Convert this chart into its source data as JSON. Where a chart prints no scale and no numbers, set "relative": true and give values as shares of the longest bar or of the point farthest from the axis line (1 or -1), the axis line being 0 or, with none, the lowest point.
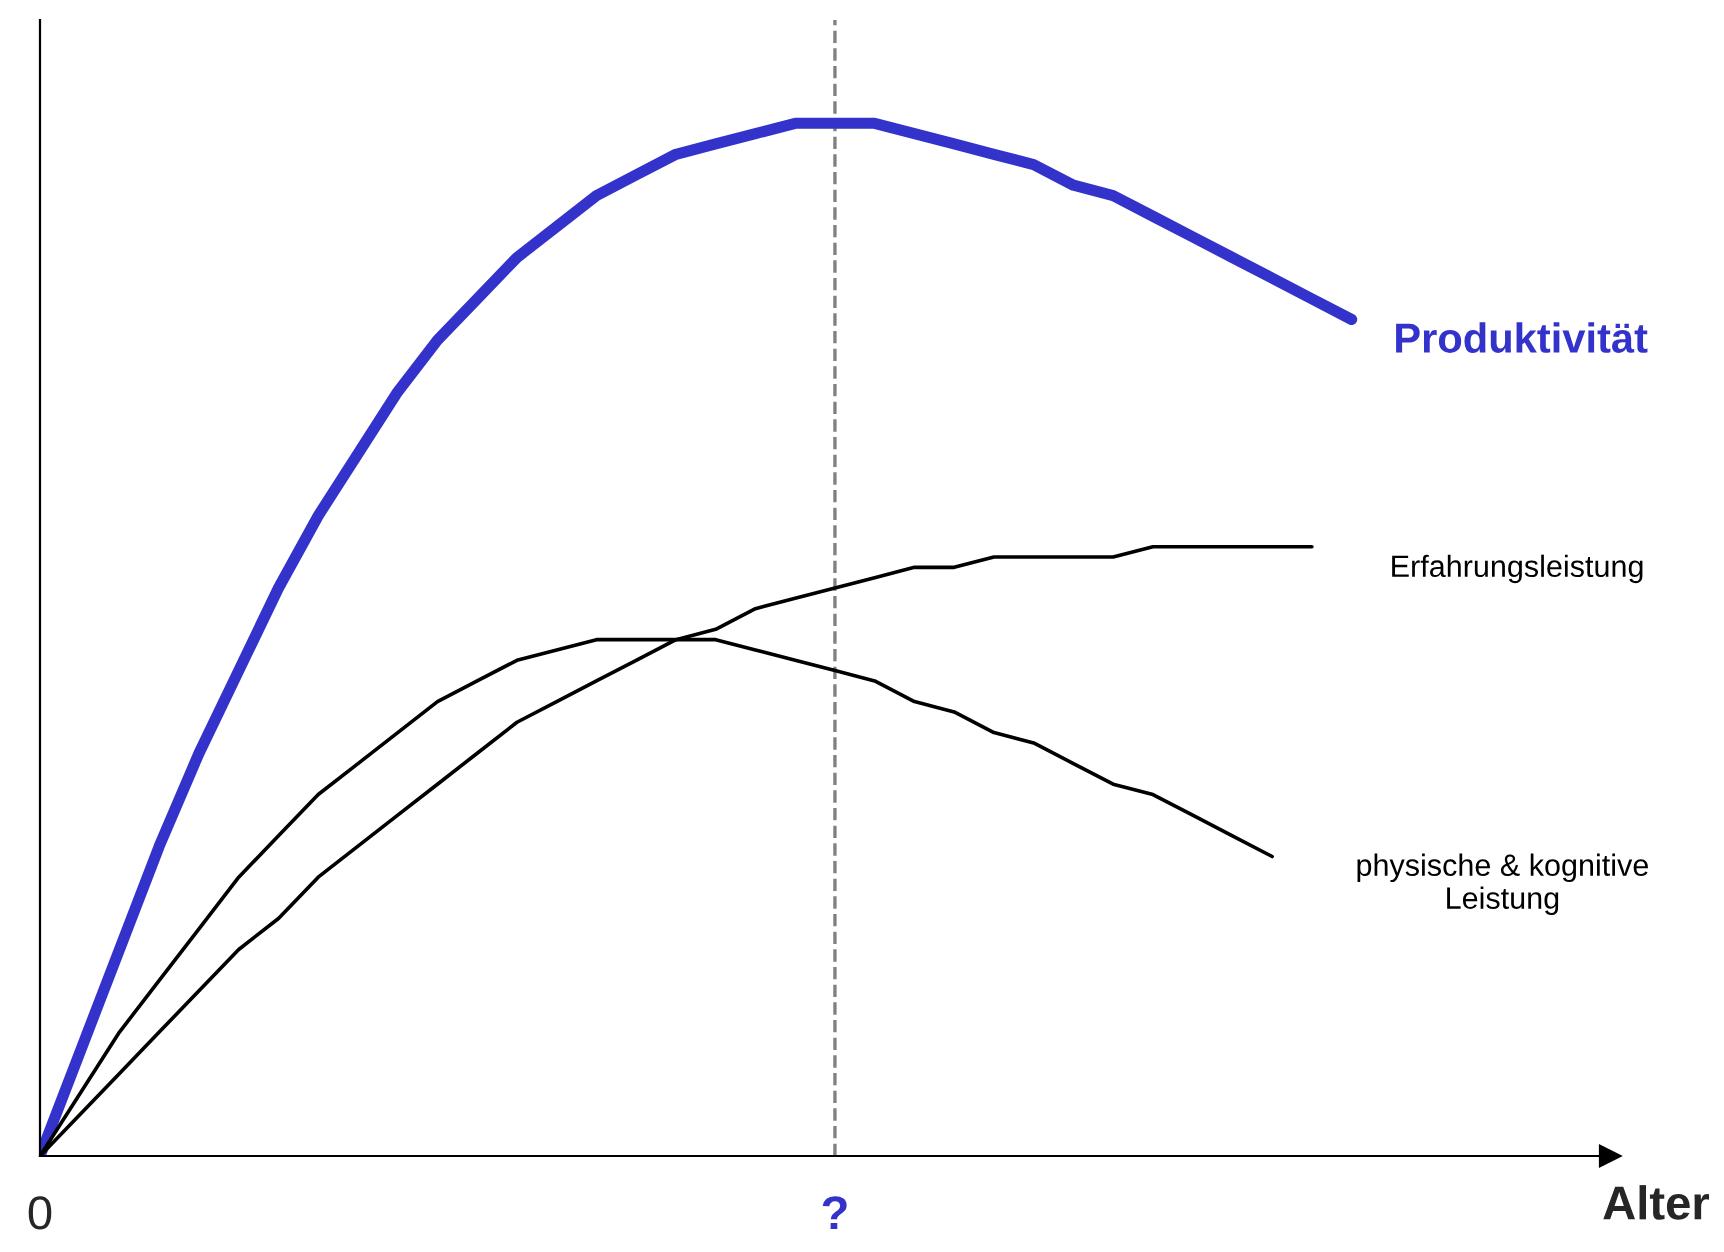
{
  "chart_data": {
    "type": "line",
    "relative": true,
    "xlabel": "Alter",
    "categories": [
      "0",
      null,
      null,
      null,
      null,
      null,
      null,
      null,
      null,
      null,
      null,
      null,
      null,
      null,
      null,
      null,
      null,
      null,
      null,
      null,
      "?",
      null,
      null,
      null,
      null,
      null,
      null,
      null,
      null,
      null,
      null,
      null,
      null,
      null,
      null,
      null,
      null,
      null,
      null,
      null
    ],
    "series": [
      {
        "name": "Produktivität",
        "color": "#3333cc",
        "values": [
          0,
          0.1,
          0.2,
          0.3,
          0.39,
          0.47,
          0.55,
          0.62,
          0.68,
          0.74,
          0.79,
          0.83,
          0.87,
          0.9,
          0.93,
          0.95,
          0.97,
          0.98,
          0.99,
          1.0,
          1.0,
          1.0,
          0.99,
          0.98,
          0.97,
          0.96,
          0.94,
          0.93,
          0.91,
          0.89,
          0.87,
          0.85,
          0.83,
          0.81,
          null,
          null,
          null,
          null,
          null,
          null
        ]
      },
      {
        "name": "Erfahrungsleistung",
        "color": "#000000",
        "values": [
          0,
          0.04,
          0.08,
          0.12,
          0.16,
          0.2,
          0.23,
          0.27,
          0.3,
          0.33,
          0.36,
          0.39,
          0.42,
          0.44,
          0.46,
          0.48,
          0.5,
          0.51,
          0.53,
          0.54,
          0.55,
          0.56,
          0.57,
          0.57,
          0.58,
          0.58,
          0.58,
          0.58,
          0.59,
          0.59,
          0.59,
          0.59,
          0.59,
          null,
          null,
          null,
          null,
          null,
          null,
          null
        ]
      },
      {
        "name": "physische & kognitive\nLeistung",
        "color": "#000000",
        "values": [
          0,
          0.06,
          0.12,
          0.17,
          0.22,
          0.27,
          0.31,
          0.35,
          0.38,
          0.41,
          0.44,
          0.46,
          0.48,
          0.49,
          0.5,
          0.5,
          0.5,
          0.5,
          0.49,
          0.48,
          0.47,
          0.46,
          0.44,
          0.43,
          0.41,
          0.4,
          0.38,
          0.36,
          0.35,
          0.33,
          0.31,
          0.29,
          null,
          null,
          null,
          null,
          null,
          null,
          null,
          null
        ]
      }
    ],
    "ref_lines": [
      {
        "axis": "x",
        "value": "?",
        "color": "#808080",
        "line_style": "dashed"
      }
    ],
    "grid": false,
    "legend": false
  }
}
